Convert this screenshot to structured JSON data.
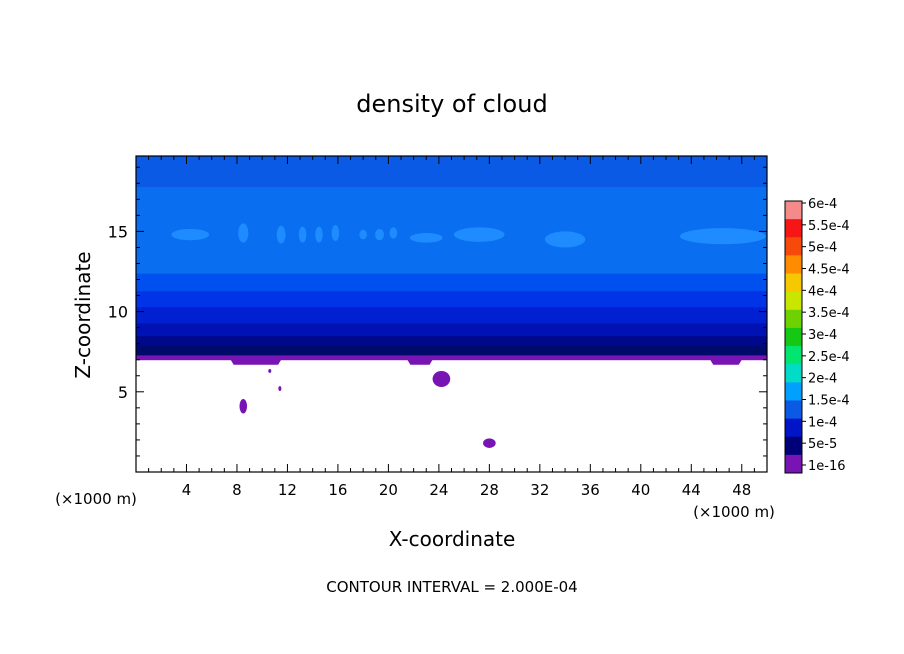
{
  "chart_data": {
    "type": "heatmap",
    "title": "density of cloud",
    "xlabel": "X-coordinate",
    "ylabel": "Z-coordinate",
    "x_unit_left": "(×1000 m)",
    "x_unit_right": "(×1000 m)",
    "xlim": [
      0,
      50
    ],
    "ylim": [
      0,
      19.7
    ],
    "x_ticks": [
      4,
      8,
      12,
      16,
      20,
      24,
      28,
      32,
      36,
      40,
      44,
      48
    ],
    "y_ticks": [
      5,
      10,
      15
    ],
    "footer": "CONTOUR INTERVAL = 2.000E-04",
    "colorbar": {
      "labels": [
        "6e-4",
        "5.5e-4",
        "5e-4",
        "4.5e-4",
        "4e-4",
        "3.5e-4",
        "3e-4",
        "2.5e-4",
        "2e-4",
        "1.5e-4",
        "1e-4",
        "5e-5",
        "1e-16"
      ],
      "colors": [
        "#f58a8a",
        "#f71616",
        "#f74a0a",
        "#ff8c00",
        "#f5c800",
        "#c8e600",
        "#6ed200",
        "#14c814",
        "#00e66e",
        "#00dcc8",
        "#00a0ff",
        "#0a5ae6",
        "#0014c8",
        "#000078",
        "#7814b4"
      ]
    },
    "cloud_base_z": 7.0,
    "field": {
      "description_levels": "z layers from cloud base upward",
      "layers": [
        {
          "z0": 7.0,
          "z1": 7.3,
          "color": "#7814b4"
        },
        {
          "z0": 7.3,
          "z1": 7.9,
          "color": "#000a6a"
        },
        {
          "z0": 7.9,
          "z1": 8.5,
          "color": "#00088c"
        },
        {
          "z0": 8.5,
          "z1": 9.3,
          "color": "#0012b4"
        },
        {
          "z0": 9.3,
          "z1": 10.3,
          "color": "#0020d2"
        },
        {
          "z0": 10.3,
          "z1": 11.3,
          "color": "#0034e6"
        },
        {
          "z0": 11.3,
          "z1": 12.4,
          "color": "#0050f0"
        },
        {
          "z0": 12.4,
          "z1": 17.8,
          "color": "#0a6ef0"
        },
        {
          "z0": 17.8,
          "z1": 19.7,
          "color": "#0a5ae6"
        }
      ],
      "patches_1_5e4": [
        {
          "x": 4.3,
          "z": 14.8,
          "rx": 1.5,
          "rz": 0.35
        },
        {
          "x": 8.5,
          "z": 14.9,
          "rx": 0.4,
          "rz": 0.6
        },
        {
          "x": 11.5,
          "z": 14.8,
          "rx": 0.35,
          "rz": 0.55
        },
        {
          "x": 13.2,
          "z": 14.8,
          "rx": 0.3,
          "rz": 0.5
        },
        {
          "x": 14.5,
          "z": 14.8,
          "rx": 0.3,
          "rz": 0.5
        },
        {
          "x": 15.8,
          "z": 14.9,
          "rx": 0.3,
          "rz": 0.5
        },
        {
          "x": 18.0,
          "z": 14.8,
          "rx": 0.3,
          "rz": 0.3
        },
        {
          "x": 19.3,
          "z": 14.8,
          "rx": 0.35,
          "rz": 0.35
        },
        {
          "x": 20.4,
          "z": 14.9,
          "rx": 0.3,
          "rz": 0.35
        },
        {
          "x": 23.0,
          "z": 14.6,
          "rx": 1.3,
          "rz": 0.3
        },
        {
          "x": 27.2,
          "z": 14.8,
          "rx": 2.0,
          "rz": 0.45
        },
        {
          "x": 34.0,
          "z": 14.5,
          "rx": 1.6,
          "rz": 0.5
        },
        {
          "x": 46.5,
          "z": 14.7,
          "rx": 3.4,
          "rz": 0.5
        }
      ],
      "patches_1e16": [
        {
          "x": 8.5,
          "z": 4.1,
          "rx": 0.3,
          "rz": 0.45
        },
        {
          "x": 10.6,
          "z": 6.3,
          "rx": 0.1,
          "rz": 0.12
        },
        {
          "x": 11.4,
          "z": 5.2,
          "rx": 0.08,
          "rz": 0.15
        },
        {
          "x": 24.2,
          "z": 5.8,
          "rx": 0.7,
          "rz": 0.5
        },
        {
          "x": 28.0,
          "z": 1.8,
          "rx": 0.5,
          "rz": 0.3
        }
      ],
      "dips": [
        {
          "x0": 7.5,
          "x1": 11.5
        },
        {
          "x0": 21.5,
          "x1": 23.5
        },
        {
          "x0": 45.5,
          "x1": 48.0
        }
      ]
    }
  }
}
